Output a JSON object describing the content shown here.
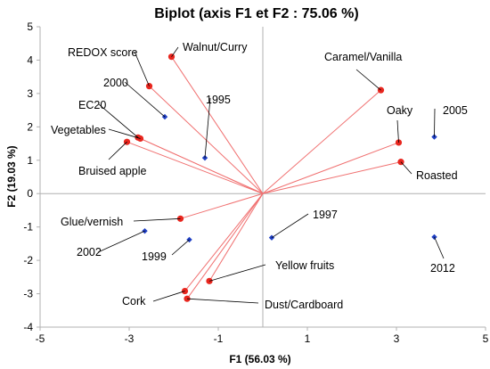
{
  "chart_data": {
    "type": "scatter",
    "title": "Biplot (axis F1 et F2 : 75.06 %)",
    "xlabel": "F1 (56.03 %)",
    "ylabel": "F2 (19.03 %)",
    "xlim": [
      -5,
      5
    ],
    "ylim": [
      -4,
      5
    ],
    "x_ticks": [
      "-5",
      "-3",
      "-1",
      "1",
      "3",
      "5"
    ],
    "y_ticks": [
      "-4",
      "-3",
      "-2",
      "-1",
      "0",
      "1",
      "2",
      "3",
      "4",
      "5"
    ],
    "grid": false,
    "colors": {
      "variables": "#e8261e",
      "vectors": "#f07070",
      "observations": "#1f3fc4",
      "axis": "#b0b0b0"
    },
    "variables": [
      {
        "label": "Walnut/Curry",
        "x": -2.05,
        "y": 4.1
      },
      {
        "label": "REDOX score",
        "x": -2.55,
        "y": 3.22
      },
      {
        "label": "EC20",
        "x": -2.8,
        "y": 1.68
      },
      {
        "label": "Vegetables",
        "x": -2.75,
        "y": 1.65
      },
      {
        "label": "Bruised apple",
        "x": -3.05,
        "y": 1.55
      },
      {
        "label": "Caramel/Vanilla",
        "x": 2.65,
        "y": 3.1
      },
      {
        "label": "Oaky",
        "x": 3.05,
        "y": 1.53
      },
      {
        "label": "Roasted",
        "x": 3.1,
        "y": 0.95
      },
      {
        "label": "Glue/vernish",
        "x": -1.85,
        "y": -0.75
      },
      {
        "label": "Yellow fruits",
        "x": -1.2,
        "y": -2.62
      },
      {
        "label": "Cork",
        "x": -1.75,
        "y": -2.92
      },
      {
        "label": "Dust/Cardboard",
        "x": -1.7,
        "y": -3.15
      }
    ],
    "observations": [
      {
        "label": "2000",
        "x": -2.2,
        "y": 2.3
      },
      {
        "label": "1995",
        "x": -1.3,
        "y": 1.07
      },
      {
        "label": "2005",
        "x": 3.85,
        "y": 1.7
      },
      {
        "label": "1997",
        "x": 0.2,
        "y": -1.32
      },
      {
        "label": "2002",
        "x": -2.65,
        "y": -1.12
      },
      {
        "label": "1999",
        "x": -1.65,
        "y": -1.38
      },
      {
        "label": "2012",
        "x": 3.85,
        "y": -1.3
      }
    ]
  }
}
